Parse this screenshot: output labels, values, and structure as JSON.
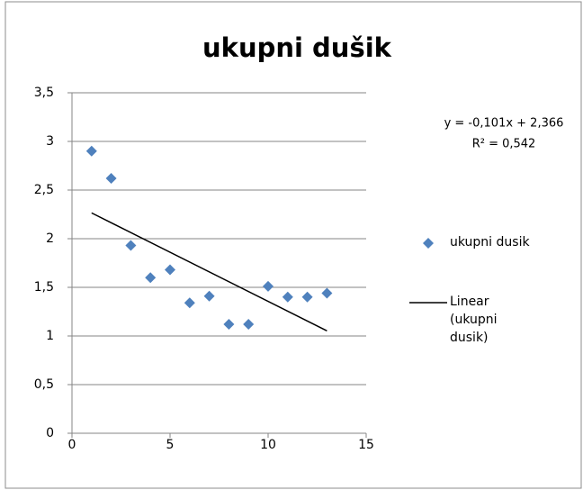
{
  "chart_data": {
    "type": "scatter",
    "title": "ukupni dušik",
    "x": [
      1,
      2,
      3,
      4,
      5,
      6,
      7,
      8,
      9,
      10,
      11,
      12,
      13
    ],
    "series": [
      {
        "name": "ukupni dusik",
        "color": "#4f81bd",
        "values": [
          2.9,
          2.62,
          1.93,
          1.6,
          1.68,
          1.34,
          1.41,
          1.12,
          1.12,
          1.51,
          1.4,
          1.4,
          1.44
        ]
      }
    ],
    "trendline": {
      "name": "Linear (ukupni dusik)",
      "color": "#000000",
      "x": [
        1,
        13
      ],
      "values": [
        2.265,
        1.053
      ]
    },
    "annotations": [
      "y = -0,101x + 2,366",
      "R² = 0,542"
    ],
    "xlim": [
      0,
      15
    ],
    "xticks": [
      0,
      5,
      10,
      15
    ],
    "ylim": [
      0,
      3.5
    ],
    "yticks": [
      0,
      {
        "value": 0.5,
        "label": "0,5"
      },
      1,
      {
        "value": 1.5,
        "label": "1,5"
      },
      2,
      {
        "value": 2.5,
        "label": "2,5"
      },
      3,
      {
        "value": 3.5,
        "label": "3,5"
      }
    ],
    "grid": true
  }
}
